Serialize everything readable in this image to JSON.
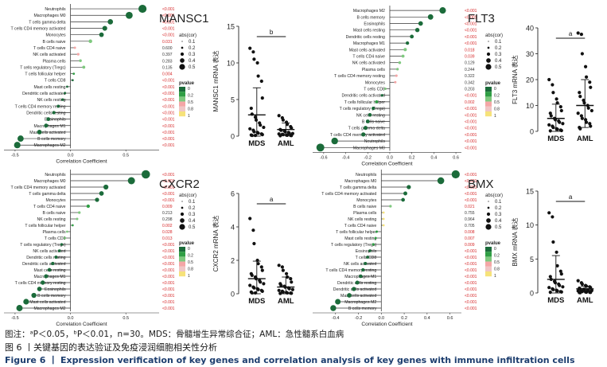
{
  "lollipops": [
    {
      "gene": "MANSC1",
      "xlabel": "Correlation Coefficient",
      "xlim": [
        -0.6,
        0.8
      ],
      "xticks": [
        -0.5,
        0.0,
        0.5
      ],
      "tick_labels": [
        "-0.5",
        "0.0",
        "0.5"
      ],
      "cells": [
        {
          "name": "Neutrophils",
          "r": 0.65,
          "p": "<0.001"
        },
        {
          "name": "Macrophages M0",
          "r": 0.53,
          "p": "<0.001"
        },
        {
          "name": "T cells gamma delta",
          "r": 0.36,
          "p": "<0.001"
        },
        {
          "name": "T cells CD4 memory activated",
          "r": 0.31,
          "p": "<0.001"
        },
        {
          "name": "Monocytes",
          "r": 0.28,
          "p": "<0.001"
        },
        {
          "name": "B cells naive",
          "r": 0.18,
          "p": "0.031"
        },
        {
          "name": "T cells CD4 naive",
          "r": 0.04,
          "p": "0.600"
        },
        {
          "name": "NK cells activated",
          "r": 0.07,
          "p": "0.397"
        },
        {
          "name": "Plasma cells",
          "r": 0.09,
          "p": "0.283"
        },
        {
          "name": "T cells regulatory (Tregs)",
          "r": 0.12,
          "p": "0.135"
        },
        {
          "name": "T cells follicular helper",
          "r": 0.03,
          "p": "0.004"
        },
        {
          "name": "T cells CD8",
          "r": 0.02,
          "p": "<0.001"
        },
        {
          "name": "Mast cells resting",
          "r": -0.03,
          "p": "<0.001"
        },
        {
          "name": "Dendritic cells activated",
          "r": -0.05,
          "p": "<0.001"
        },
        {
          "name": "NK cells resting",
          "r": -0.07,
          "p": "<0.001"
        },
        {
          "name": "T cells CD4 memory resting",
          "r": -0.11,
          "p": "<0.001"
        },
        {
          "name": "Dendritic cells resting",
          "r": -0.15,
          "p": "<0.001"
        },
        {
          "name": "Eosinophils",
          "r": -0.2,
          "p": "<0.001"
        },
        {
          "name": "Macrophages M1",
          "r": -0.22,
          "p": "<0.001"
        },
        {
          "name": "Mast cells activated",
          "r": -0.28,
          "p": "<0.001"
        },
        {
          "name": "B cells memory",
          "r": -0.45,
          "p": "<0.001"
        },
        {
          "name": "Macrophages M2",
          "r": -0.48,
          "p": "<0.001"
        }
      ]
    },
    {
      "gene": "FLT3",
      "xlabel": "Correlation Coefficient",
      "xlim": [
        -0.7,
        0.65
      ],
      "xticks": [
        -0.6,
        -0.4,
        -0.2,
        0.0,
        0.2,
        0.4,
        0.6
      ],
      "tick_labels": [
        "-0.6",
        "-0.4",
        "-0.2",
        "0.0",
        "0.2",
        "0.4",
        "0.6"
      ],
      "cells": [
        {
          "name": "Macrophages M2",
          "r": 0.48,
          "p": "<0.001"
        },
        {
          "name": "B cells memory",
          "r": 0.37,
          "p": "<0.001"
        },
        {
          "name": "Eosinophils",
          "r": 0.28,
          "p": "<0.001"
        },
        {
          "name": "Mast cells resting",
          "r": 0.25,
          "p": "<0.001"
        },
        {
          "name": "Dendritic cells resting",
          "r": 0.2,
          "p": "<0.001"
        },
        {
          "name": "Macrophages M1",
          "r": 0.16,
          "p": "<0.001"
        },
        {
          "name": "Mast cells activated",
          "r": 0.14,
          "p": "0.018"
        },
        {
          "name": "T cells CD4 naive",
          "r": 0.12,
          "p": "0.039"
        },
        {
          "name": "NK cells activated",
          "r": 0.09,
          "p": "0.129"
        },
        {
          "name": "Plasma cells",
          "r": 0.07,
          "p": "0.244"
        },
        {
          "name": "T cells CD4 memory resting",
          "r": 0.06,
          "p": "0.322"
        },
        {
          "name": "Monocytes",
          "r": 0.05,
          "p": "0.342"
        },
        {
          "name": "T cells CD8",
          "r": -0.04,
          "p": "0.203"
        },
        {
          "name": "Dendritic cells activated",
          "r": -0.07,
          "p": "<0.001"
        },
        {
          "name": "T cells follicular helper",
          "r": -0.12,
          "p": "0.002"
        },
        {
          "name": "T cells regulatory (Tregs)",
          "r": -0.15,
          "p": "<0.001"
        },
        {
          "name": "NK cells resting",
          "r": -0.18,
          "p": "<0.001"
        },
        {
          "name": "B cells naive",
          "r": -0.2,
          "p": "<0.001"
        },
        {
          "name": "T cells gamma delta",
          "r": -0.22,
          "p": "<0.001"
        },
        {
          "name": "T cells CD4 memory activated",
          "r": -0.24,
          "p": "<0.001"
        },
        {
          "name": "Neutrophils",
          "r": -0.5,
          "p": "<0.001"
        },
        {
          "name": "Macrophages M0",
          "r": -0.63,
          "p": "<0.001"
        }
      ]
    },
    {
      "gene": "CXCR2",
      "xlabel": "Correlation Coefficient",
      "xlim": [
        -0.6,
        0.8
      ],
      "xticks": [
        -0.5,
        0.0,
        0.5
      ],
      "tick_labels": [
        "-0.5",
        "0.0",
        "0.5"
      ],
      "cells": [
        {
          "name": "Neutrophils",
          "r": 0.68,
          "p": "<0.001"
        },
        {
          "name": "Macrophages M0",
          "r": 0.55,
          "p": "<0.001"
        },
        {
          "name": "T cells CD4 memory activated",
          "r": 0.32,
          "p": "<0.001"
        },
        {
          "name": "T cells gamma delta",
          "r": 0.28,
          "p": "<0.001"
        },
        {
          "name": "Monocytes",
          "r": 0.24,
          "p": "<0.001"
        },
        {
          "name": "T cells CD4 naive",
          "r": 0.16,
          "p": "0.009"
        },
        {
          "name": "B cells naive",
          "r": 0.08,
          "p": "0.213"
        },
        {
          "name": "NK cells resting",
          "r": 0.06,
          "p": "0.298"
        },
        {
          "name": "T cells follicular helper",
          "r": 0.02,
          "p": "0.002"
        },
        {
          "name": "Plasma cells",
          "r": -0.03,
          "p": "0.028"
        },
        {
          "name": "T cells CD8",
          "r": -0.05,
          "p": "0.013"
        },
        {
          "name": "T cells regulatory (Tregs)",
          "r": -0.08,
          "p": "<0.001"
        },
        {
          "name": "NK cells activated",
          "r": -0.1,
          "p": "<0.001"
        },
        {
          "name": "Dendritic cells resting",
          "r": -0.13,
          "p": "<0.001"
        },
        {
          "name": "Dendritic cells activated",
          "r": -0.16,
          "p": "<0.001"
        },
        {
          "name": "Mast cells resting",
          "r": -0.19,
          "p": "<0.001"
        },
        {
          "name": "Macrophages M1",
          "r": -0.22,
          "p": "<0.001"
        },
        {
          "name": "T cells CD4 memory resting",
          "r": -0.25,
          "p": "<0.001"
        },
        {
          "name": "Eosinophils",
          "r": -0.28,
          "p": "<0.001"
        },
        {
          "name": "B cells memory",
          "r": -0.33,
          "p": "<0.001"
        },
        {
          "name": "Mast cells activated",
          "r": -0.4,
          "p": "<0.001"
        },
        {
          "name": "Macrophages M2",
          "r": -0.46,
          "p": "<0.001"
        }
      ]
    },
    {
      "gene": "BMX",
      "xlabel": "Correlation Coefficient",
      "xlim": [
        -0.6,
        0.7
      ],
      "xticks": [
        -0.4,
        -0.2,
        0.0,
        0.2,
        0.4,
        0.6
      ],
      "tick_labels": [
        "-0.4",
        "-0.2",
        "0.0",
        "0.2",
        "0.4",
        "0.6"
      ],
      "cells": [
        {
          "name": "Neutrophils",
          "r": 0.65,
          "p": "<0.001"
        },
        {
          "name": "Macrophages M0",
          "r": 0.52,
          "p": "<0.001"
        },
        {
          "name": "T cells gamma delta",
          "r": 0.24,
          "p": "<0.001"
        },
        {
          "name": "T cells CD4 memory activated",
          "r": 0.21,
          "p": "<0.001"
        },
        {
          "name": "Monocytes",
          "r": 0.19,
          "p": "<0.001"
        },
        {
          "name": "B cells naive",
          "r": 0.08,
          "p": "0.021"
        },
        {
          "name": "Plasma cells",
          "r": 0.02,
          "p": "0.755"
        },
        {
          "name": "NK cells resting",
          "r": 0.02,
          "p": "0.964"
        },
        {
          "name": "T cells CD4 naive",
          "r": 0.02,
          "p": "0.705"
        },
        {
          "name": "T cells follicular helper",
          "r": -0.04,
          "p": "0.008"
        },
        {
          "name": "Mast cells resting",
          "r": -0.05,
          "p": "0.007"
        },
        {
          "name": "T cells regulatory (Tregs)",
          "r": -0.07,
          "p": "0.009"
        },
        {
          "name": "Eosinophils",
          "r": -0.1,
          "p": "<0.001"
        },
        {
          "name": "T cells CD8",
          "r": -0.12,
          "p": "<0.001"
        },
        {
          "name": "NK cells activated",
          "r": -0.14,
          "p": "<0.001"
        },
        {
          "name": "T cells CD4 memory resting",
          "r": -0.16,
          "p": "<0.001"
        },
        {
          "name": "Macrophages M1",
          "r": -0.18,
          "p": "<0.001"
        },
        {
          "name": "Dendritic cells resting",
          "r": -0.21,
          "p": "<0.001"
        },
        {
          "name": "Dendritic cells activated",
          "r": -0.24,
          "p": "<0.001"
        },
        {
          "name": "Mast cells activated",
          "r": -0.28,
          "p": "<0.001"
        },
        {
          "name": "Macrophages M2",
          "r": -0.38,
          "p": "<0.001"
        },
        {
          "name": "B cells memory",
          "r": -0.42,
          "p": "<0.001"
        }
      ]
    }
  ],
  "scatters": [
    {
      "gene": "MANSC1",
      "ylabel": "MANSC1 mRNA 表达",
      "ylim": [
        0,
        15
      ],
      "yticks": [
        0,
        5,
        10,
        15
      ],
      "sig": "b",
      "groups": [
        {
          "name": "MDS",
          "mean": 2.9,
          "sd_high": 6.6,
          "sd_low": 0,
          "points": [
            12.0,
            11.5,
            10.5,
            10.0,
            8.2,
            7.5,
            5.2,
            3.8,
            3.0,
            2.6,
            2.2,
            1.8,
            1.5,
            1.2,
            1.0,
            0.8,
            0.6,
            0.5,
            0.4,
            0.3,
            0.2,
            0.15,
            0.1,
            0.1
          ]
        },
        {
          "name": "AML",
          "mean": 0.9,
          "sd_high": 1.8,
          "sd_low": 0.1,
          "points": [
            2.8,
            2.5,
            2.2,
            1.9,
            1.6,
            1.3,
            1.1,
            0.9,
            0.8,
            0.7,
            0.6,
            0.5,
            0.4,
            0.35,
            0.3,
            0.25,
            0.2,
            0.15,
            0.12,
            0.1,
            0.08,
            0.05
          ]
        }
      ]
    },
    {
      "gene": "FLT3",
      "ylabel": "FLT3 mRNA 表达",
      "ylim": [
        0,
        40
      ],
      "yticks": [
        0,
        10,
        20,
        30,
        40
      ],
      "sig": "a",
      "groups": [
        {
          "name": "MDS",
          "mean": 5.0,
          "sd_high": 10.5,
          "sd_low": 0,
          "points": [
            20.0,
            18.0,
            15.0,
            12.5,
            11.0,
            9.5,
            8.0,
            7.0,
            6.0,
            5.0,
            4.5,
            4.0,
            3.5,
            3.0,
            2.5,
            2.0,
            1.5,
            1.0,
            0.8,
            0.5,
            0.3,
            0.2
          ]
        },
        {
          "name": "AML",
          "mean": 10.0,
          "sd_high": 20.0,
          "sd_low": 1.5,
          "points": [
            38.0,
            37.5,
            30.0,
            25.0,
            21.0,
            19.0,
            17.0,
            15.0,
            13.5,
            12.0,
            11.0,
            10.0,
            9.0,
            8.0,
            7.0,
            6.0,
            5.0,
            4.5,
            3.5,
            3.0,
            2.0,
            1.5,
            1.0
          ]
        }
      ]
    },
    {
      "gene": "CXCR2",
      "ylabel": "CXCR2 mRNA 表达",
      "ylim": [
        0,
        6
      ],
      "yticks": [
        0,
        2,
        4,
        6
      ],
      "sig": "a",
      "groups": [
        {
          "name": "MDS",
          "mean": 0.9,
          "sd_high": 1.95,
          "sd_low": 0,
          "points": [
            4.5,
            3.8,
            3.0,
            2.0,
            1.8,
            1.6,
            1.4,
            1.2,
            1.1,
            1.0,
            0.9,
            0.8,
            0.7,
            0.6,
            0.5,
            0.4,
            0.35,
            0.3,
            0.25,
            0.2,
            0.15,
            0.1,
            0.05,
            0.05
          ]
        },
        {
          "name": "AML",
          "mean": 0.4,
          "sd_high": 1.0,
          "sd_low": 0,
          "points": [
            1.7,
            1.6,
            1.4,
            1.2,
            1.0,
            0.9,
            0.7,
            0.6,
            0.5,
            0.45,
            0.4,
            0.35,
            0.3,
            0.25,
            0.2,
            0.15,
            0.1,
            0.08,
            0.05,
            0.04,
            0.03,
            0.02
          ]
        }
      ]
    },
    {
      "gene": "BMX",
      "ylabel": "BMX mRNA 表达",
      "ylim": [
        0,
        15
      ],
      "yticks": [
        0,
        5,
        10,
        15
      ],
      "sig": "a",
      "groups": [
        {
          "name": "MDS",
          "mean": 2.0,
          "sd_high": 5.5,
          "sd_low": 0,
          "points": [
            11.8,
            11.2,
            7.5,
            6.0,
            4.0,
            3.2,
            2.8,
            2.4,
            2.0,
            1.7,
            1.5,
            1.3,
            1.1,
            0.9,
            0.8,
            0.6,
            0.5,
            0.4,
            0.3,
            0.2,
            0.15,
            0.1
          ]
        },
        {
          "name": "AML",
          "mean": 0.6,
          "sd_high": 1.0,
          "sd_low": 0.2,
          "points": [
            1.8,
            1.5,
            1.3,
            1.1,
            1.0,
            0.9,
            0.8,
            0.7,
            0.6,
            0.55,
            0.5,
            0.45,
            0.4,
            0.35,
            0.3,
            0.25,
            0.2,
            0.15,
            0.12,
            0.1,
            0.08,
            0.05,
            0.04
          ]
        }
      ]
    }
  ],
  "legend": {
    "size_title": "abs(cor)",
    "size_values": [
      "0.1",
      "0.2",
      "0.3",
      "0.4",
      "0.5"
    ],
    "color_title": "pvalue",
    "color_values": [
      "0",
      "0.2",
      "0.5",
      "0.8",
      "1"
    ],
    "palette": [
      "#1b6b3a",
      "#2f9e44",
      "#7fc97f",
      "#f4a6a6",
      "#f0c6c6",
      "#f6e27a"
    ]
  },
  "colors": {
    "sig_p": "#d62728",
    "nonsig_p": "#333333",
    "marker": "#1f6e3a"
  },
  "captions": {
    "note": "图注：ᵃP＜0.05，ᵇP＜0.01，n=30。MDS：骨髓增生异常综合征；AML：急性髓系白血病",
    "figure_cn": "图 6 丨关键基因的表达验证及免疫浸润细胞相关性分析",
    "figure_en": "Figure 6 丨 Expression verification of key genes and correlation analysis of key genes with immune infiltration cells"
  },
  "chart_data": [
    {
      "type": "lollipop",
      "gene": "MANSC1",
      "xlabel": "Correlation Coefficient",
      "note": "see lollipops[0]"
    },
    {
      "type": "scatter",
      "gene": "MANSC1",
      "ylabel": "MANSC1 mRNA 表达",
      "categories": [
        "MDS",
        "AML"
      ],
      "means": [
        2.9,
        0.9
      ],
      "ylim": [
        0,
        15
      ]
    },
    {
      "type": "lollipop",
      "gene": "FLT3",
      "xlabel": "Correlation Coefficient",
      "note": "see lollipops[1]"
    },
    {
      "type": "scatter",
      "gene": "FLT3",
      "ylabel": "FLT3 mRNA 表达",
      "categories": [
        "MDS",
        "AML"
      ],
      "means": [
        5.0,
        10.0
      ],
      "ylim": [
        0,
        40
      ]
    },
    {
      "type": "lollipop",
      "gene": "CXCR2",
      "xlabel": "Correlation Coefficient",
      "note": "see lollipops[2]"
    },
    {
      "type": "scatter",
      "gene": "CXCR2",
      "ylabel": "CXCR2 mRNA 表达",
      "categories": [
        "MDS",
        "AML"
      ],
      "means": [
        0.9,
        0.4
      ],
      "ylim": [
        0,
        6
      ]
    },
    {
      "type": "lollipop",
      "gene": "BMX",
      "xlabel": "Correlation Coefficient",
      "note": "see lollipops[3]"
    },
    {
      "type": "scatter",
      "gene": "BMX",
      "ylabel": "BMX mRNA 表达",
      "categories": [
        "MDS",
        "AML"
      ],
      "means": [
        2.0,
        0.6
      ],
      "ylim": [
        0,
        15
      ]
    }
  ]
}
